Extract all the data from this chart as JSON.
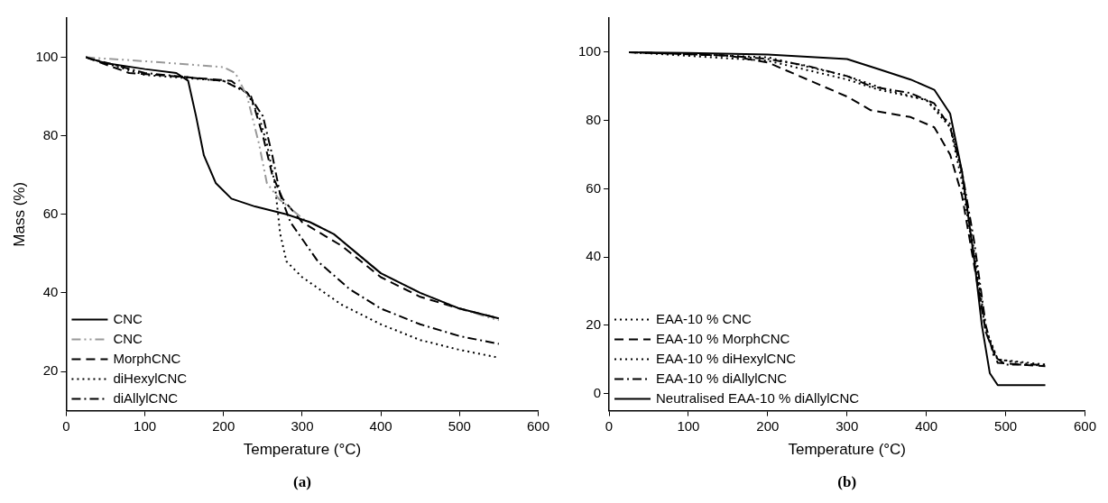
{
  "chart_data": [
    {
      "type": "line",
      "xlabel": "Temperature (°C)",
      "ylabel": "Mass (%)",
      "xlim": [
        0,
        600
      ],
      "xticks": [
        0,
        100,
        200,
        300,
        400,
        500,
        600
      ],
      "ylim": [
        10,
        110
      ],
      "yticks": [
        20,
        40,
        60,
        80,
        100
      ],
      "grid": false,
      "legend": "bottom left",
      "annotations": [
        "(a)"
      ],
      "series": [
        {
          "name": "CNC",
          "color": "#000000",
          "line_style": "solid",
          "x": [
            25,
            50,
            100,
            140,
            155,
            165,
            175,
            190,
            210,
            240,
            280,
            310,
            340,
            370,
            400,
            450,
            500,
            550
          ],
          "values": [
            100,
            98.5,
            97,
            96,
            94,
            85,
            75,
            68,
            64,
            62,
            60,
            58,
            55,
            50,
            45,
            40,
            36,
            33.5
          ]
        },
        {
          "name": "CNC",
          "color": "#999999",
          "line_style": "dashdotdot",
          "x": [
            25,
            100,
            200,
            215,
            230,
            245,
            255,
            270,
            300,
            340,
            400,
            450,
            500,
            550
          ],
          "values": [
            100,
            99,
            97.5,
            96,
            90,
            78,
            68,
            64,
            59,
            55,
            45,
            40,
            36,
            33
          ]
        },
        {
          "name": "MorphCNC",
          "color": "#000000",
          "line_style": "dashed",
          "x": [
            25,
            80,
            150,
            210,
            235,
            250,
            262,
            275,
            300,
            350,
            400,
            450,
            500,
            550
          ],
          "values": [
            100,
            96,
            95,
            94,
            90,
            80,
            70,
            64,
            58,
            52,
            44,
            39,
            36,
            33.5
          ]
        },
        {
          "name": "diHexylCNC",
          "color": "#000000",
          "line_style": "dotted",
          "x": [
            25,
            100,
            200,
            230,
            245,
            255,
            265,
            272,
            280,
            300,
            350,
            400,
            450,
            500,
            550
          ],
          "values": [
            100,
            95.5,
            94,
            91,
            85,
            78,
            68,
            55,
            48,
            44,
            37,
            32,
            28,
            25.5,
            23.5
          ]
        },
        {
          "name": "diAllylCNC",
          "color": "#000000",
          "line_style": "dashdot",
          "x": [
            25,
            100,
            200,
            230,
            250,
            262,
            272,
            285,
            320,
            360,
            400,
            450,
            500,
            550
          ],
          "values": [
            100,
            96,
            94,
            91,
            85,
            75,
            65,
            58,
            48,
            41,
            36,
            32,
            29,
            27
          ]
        }
      ]
    },
    {
      "type": "line",
      "xlabel": "Temperature (°C)",
      "xlim": [
        0,
        600
      ],
      "xticks": [
        0,
        100,
        200,
        300,
        400,
        500,
        600
      ],
      "ylim": [
        -5,
        110
      ],
      "yticks": [
        0,
        20,
        40,
        60,
        80,
        100
      ],
      "grid": false,
      "legend": "bottom left",
      "annotations": [
        "(b)"
      ],
      "series": [
        {
          "name": "EAA-10 % CNC",
          "color": "#000000",
          "line_style": "dotted",
          "x": [
            25,
            200,
            300,
            350,
            400,
            430,
            445,
            460,
            475,
            490,
            550
          ],
          "values": [
            100,
            98.5,
            93,
            89,
            86,
            79,
            64,
            42,
            19,
            10,
            8
          ]
        },
        {
          "name": "EAA-10 % MorphCNC",
          "color": "#000000",
          "line_style": "dashed",
          "x": [
            25,
            150,
            200,
            250,
            300,
            330,
            380,
            410,
            430,
            445,
            460,
            475,
            490,
            550
          ],
          "values": [
            100,
            99,
            97,
            92,
            87,
            83,
            81,
            78,
            70,
            58,
            38,
            18,
            9,
            8
          ]
        },
        {
          "name": "EAA-10 % diHexylCNC",
          "color": "#000000",
          "line_style": "dotted",
          "x": [
            25,
            200,
            300,
            340,
            400,
            430,
            445,
            460,
            475,
            490,
            550
          ],
          "values": [
            100,
            97.5,
            92,
            89,
            86,
            78,
            62,
            40,
            18,
            10,
            8.5
          ]
        },
        {
          "name": "EAA-10 % diAllylCNC",
          "color": "#000000",
          "line_style": "dashdot",
          "x": [
            25,
            150,
            200,
            250,
            300,
            330,
            380,
            410,
            430,
            445,
            460,
            475,
            485,
            500,
            550
          ],
          "values": [
            100,
            99,
            98,
            96,
            93,
            90,
            88,
            85,
            78,
            65,
            45,
            20,
            11,
            8.5,
            8.5
          ]
        },
        {
          "name": "Neutralised EAA-10 % diAllylCNC",
          "color": "#000000",
          "line_style": "solid",
          "x": [
            25,
            100,
            200,
            300,
            340,
            380,
            410,
            430,
            445,
            460,
            470,
            480,
            490,
            550
          ],
          "values": [
            100,
            99.8,
            99.3,
            98,
            95,
            92,
            89,
            82,
            65,
            40,
            20,
            6,
            2.5,
            2.5
          ]
        }
      ]
    }
  ]
}
